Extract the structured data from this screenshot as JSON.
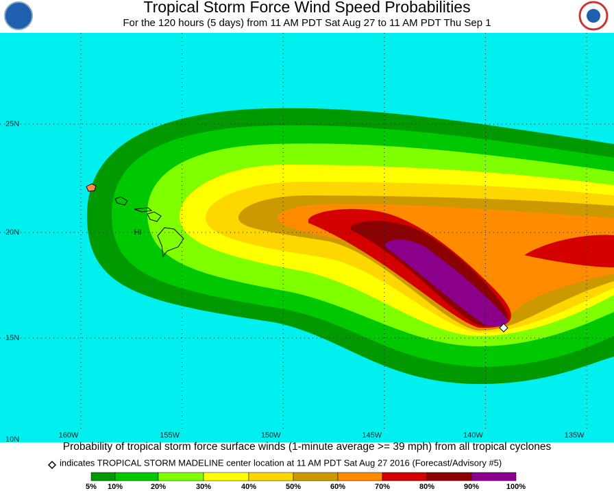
{
  "header": {
    "title": "Tropical Storm Force Wind Speed Probabilities",
    "subtitle": "For the 120 hours (5 days) from 11 AM PDT Sat Aug 27 to 11 AM PDT Thu Sep 1"
  },
  "map": {
    "lat_labels": [
      "25N",
      "20N",
      "15N",
      "10N"
    ],
    "lon_labels": [
      "160W",
      "155W",
      "150W",
      "145W",
      "140W",
      "135W"
    ],
    "region_label": "HI"
  },
  "footer": {
    "caption": "Probability of tropical storm force surface winds (1-minute average >= 39 mph) from all tropical cyclones",
    "note": "indicates TROPICAL STORM MADELINE center location at 11 AM PDT Sat Aug 27 2016 (Forecast/Advisory #5)"
  },
  "legend": {
    "labels": [
      "5%",
      "10%",
      "20%",
      "30%",
      "40%",
      "50%",
      "60%",
      "70%",
      "80%",
      "90%",
      "100%"
    ]
  }
}
